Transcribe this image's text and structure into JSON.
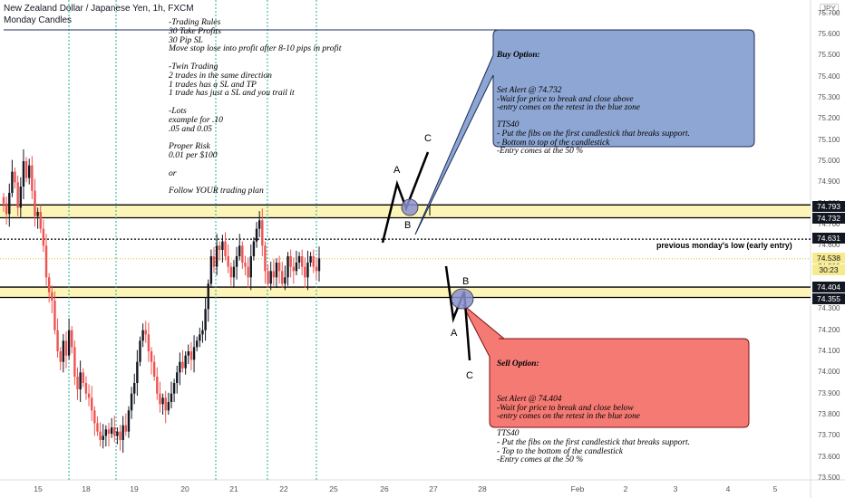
{
  "header": {
    "instrument": "New Zealand Dollar / Japanese Yen, 1h, FXCM",
    "indicator": "Monday Candles"
  },
  "currency_badge": "JPY",
  "notes_text": "-Trading Rules\n30 Take Profits\n30 Pip SL\nMove stop lose into profit after 8-10 pips in profit\n\n-Twin Trading\n2 trades in the same direction\n1 trades has a SL and TP\n1 trade has just a SL and you trail it\n\n-Lots\nexample for .10\n.05 and 0.05\n\nProper Risk\n0.01 per $100\n\nor\n\nFollow YOUR trading plan",
  "buy_option": {
    "title": "Buy Option:",
    "body": "Set Alert @ 74.732\n-Wait for price to break and close above\n-entry comes on the retest in the blue zone\n\nTTS40\n- Put the fibs on the first candlestick that breaks support.\n- Bottom to top of the candlestick\n-Entry comes at the 50 %",
    "color": "#8ea6d3"
  },
  "sell_option": {
    "title": "Sell Option:",
    "body": "Set Alert @ 74.404\n-Wait for price to break and close below\n-entry comes on the retest in the blue zone\n\nTTS40\n- Put the fibs on the first candlestick that breaks support.\n- Top to the bottom of the candlestick\n-Entry comes at the 50 %",
    "color": "#f47a73"
  },
  "pattern_labels": {
    "buy": [
      "A",
      "B",
      "C"
    ],
    "sell": [
      "A",
      "B",
      "C"
    ]
  },
  "level_note": "previous monday's low (early entry)",
  "price_axis": {
    "ticks": [
      "75.700",
      "75.600",
      "75.500",
      "75.400",
      "75.300",
      "75.200",
      "75.100",
      "75.000",
      "74.900",
      "74.800",
      "74.700",
      "74.600",
      "74.500",
      "74.400",
      "74.300",
      "74.200",
      "74.100",
      "74.000",
      "73.900",
      "73.800",
      "73.700",
      "73.600",
      "73.500"
    ],
    "labels": {
      "upper_zone_top": "74.793",
      "upper_zone_bottom": "74.732",
      "monday_low": "74.631",
      "current": "74.538",
      "countdown": "30:23",
      "lower_zone_top": "74.404",
      "lower_zone_bottom": "74.355"
    }
  },
  "time_axis": [
    "15",
    "18",
    "19",
    "20",
    "21",
    "22",
    "25",
    "26",
    "27",
    "28",
    "Feb",
    "2",
    "3",
    "4",
    "5"
  ],
  "chart_data": {
    "type": "candlestick",
    "y_range": [
      73.5,
      75.72
    ],
    "zones": [
      {
        "top": 74.793,
        "bottom": 74.732,
        "color": "#fdf4b8"
      },
      {
        "top": 74.404,
        "bottom": 74.355,
        "color": "#fdf4b8"
      }
    ],
    "monday_low": 74.631,
    "current_price": 74.538,
    "colors": {
      "up": "#131722",
      "down": "#ef5350",
      "session": "#1fb29e"
    },
    "closes": [
      74.8,
      74.75,
      74.85,
      74.95,
      74.9,
      74.78,
      74.88,
      75.0,
      74.92,
      74.98,
      74.86,
      74.74,
      74.76,
      74.68,
      74.6,
      74.45,
      74.38,
      74.34,
      74.2,
      74.1,
      74.05,
      74.15,
      74.08,
      74.2,
      74.12,
      73.98,
      73.92,
      74.0,
      73.95,
      73.9,
      73.88,
      73.82,
      73.76,
      73.72,
      73.68,
      73.7,
      73.73,
      73.71,
      73.74,
      73.7,
      73.72,
      73.68,
      73.75,
      73.72,
      73.82,
      73.9,
      73.95,
      74.05,
      74.15,
      74.2,
      74.18,
      74.1,
      74.05,
      73.98,
      73.9,
      73.85,
      73.88,
      73.82,
      73.86,
      73.9,
      73.95,
      74.0,
      74.05,
      74.02,
      74.08,
      74.1,
      74.06,
      74.12,
      74.15,
      74.18,
      74.2,
      74.3,
      74.42,
      74.55,
      74.5,
      74.6,
      74.58,
      74.62,
      74.55,
      74.5,
      74.45,
      74.5,
      74.55,
      74.6,
      74.52,
      74.5,
      74.45,
      74.55,
      74.62,
      74.68,
      74.72,
      74.6,
      74.48,
      74.42,
      74.48,
      74.45,
      74.52,
      74.48,
      74.42,
      74.45,
      74.55,
      74.5,
      74.48,
      74.52,
      74.55,
      74.5,
      74.45,
      74.52,
      74.55,
      74.5,
      74.48,
      74.54
    ]
  }
}
